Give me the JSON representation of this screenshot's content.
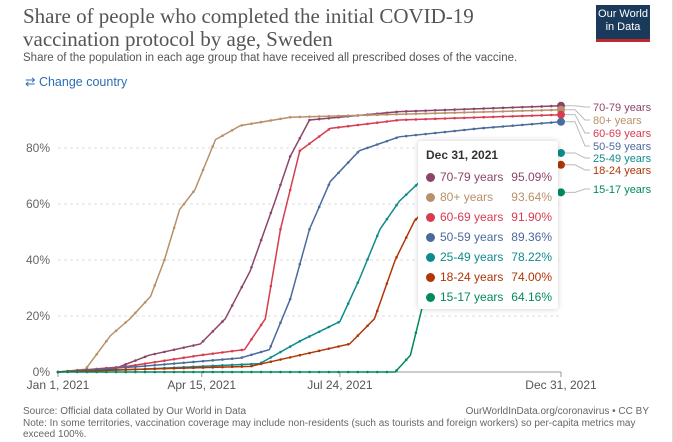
{
  "header": {
    "title": "Share of people who completed the initial COVID-19 vaccination protocol by age, Sweden",
    "subtitle": "Share of the population in each age group that have received all prescribed doses of the vaccine.",
    "logo": "Our World in Data",
    "change_country": "Change country"
  },
  "footer": {
    "source": "Source: Official data collated by Our World in Data",
    "note": "Note: In some territories, vaccination coverage may include non-residents (such as tourists and foreign workers) so per-capita metrics may exceed 100%.",
    "link": "OurWorldInData.org/coronavirus • CC BY"
  },
  "tooltip": {
    "date": "Dec 31, 2021",
    "rows": [
      {
        "name": "70-79 years",
        "value": "95.09%",
        "color": "#8c4569"
      },
      {
        "name": "80+ years",
        "value": "93.64%",
        "color": "#b8906a"
      },
      {
        "name": "60-69 years",
        "value": "91.90%",
        "color": "#d73c50"
      },
      {
        "name": "50-59 years",
        "value": "89.36%",
        "color": "#4c6a9c"
      },
      {
        "name": "25-49 years",
        "value": "78.22%",
        "color": "#0f8b8d"
      },
      {
        "name": "18-24 years",
        "value": "74.00%",
        "color": "#b13507"
      },
      {
        "name": "15-17 years",
        "value": "64.16%",
        "color": "#008a5e"
      }
    ]
  },
  "chart_data": {
    "type": "line",
    "title": "Share of people who completed the initial COVID-19 vaccination protocol by age, Sweden",
    "xlabel": "",
    "ylabel": "",
    "x_unit": "day of 2021",
    "xlim": [
      0,
      364
    ],
    "ylim": [
      0,
      100
    ],
    "x_ticks": [
      {
        "day": 0,
        "label": "Jan 1, 2021"
      },
      {
        "day": 104,
        "label": "Apr 15, 2021"
      },
      {
        "day": 204,
        "label": "Jul 24, 2021"
      },
      {
        "day": 364,
        "label": "Dec 31, 2021"
      }
    ],
    "y_ticks": [
      {
        "v": 0,
        "label": "0%"
      },
      {
        "v": 20,
        "label": "20%"
      },
      {
        "v": 40,
        "label": "40%"
      },
      {
        "v": 60,
        "label": "60%"
      },
      {
        "v": 80,
        "label": "80%"
      }
    ],
    "series": [
      {
        "name": "70-79 years",
        "color": "#8c4569",
        "points": [
          [
            0,
            0
          ],
          [
            40,
            1
          ],
          [
            66,
            6
          ],
          [
            103,
            10
          ],
          [
            121,
            19
          ],
          [
            139,
            36
          ],
          [
            157,
            61
          ],
          [
            168,
            77
          ],
          [
            182,
            90
          ],
          [
            247,
            93
          ],
          [
            364,
            95.09
          ]
        ]
      },
      {
        "name": "80+ years",
        "color": "#b8906a",
        "points": [
          [
            0,
            0
          ],
          [
            20,
            1
          ],
          [
            38,
            13
          ],
          [
            52,
            19
          ],
          [
            67,
            27
          ],
          [
            77,
            40
          ],
          [
            88,
            58
          ],
          [
            99,
            65
          ],
          [
            114,
            83
          ],
          [
            132,
            88
          ],
          [
            168,
            91
          ],
          [
            364,
            93.64
          ]
        ]
      },
      {
        "name": "60-69 years",
        "color": "#d73c50",
        "points": [
          [
            0,
            0
          ],
          [
            50,
            2
          ],
          [
            103,
            6
          ],
          [
            135,
            8
          ],
          [
            150,
            19
          ],
          [
            161,
            51
          ],
          [
            175,
            79
          ],
          [
            197,
            87
          ],
          [
            247,
            90
          ],
          [
            364,
            91.9
          ]
        ]
      },
      {
        "name": "50-59 years",
        "color": "#4c6a9c",
        "points": [
          [
            0,
            0
          ],
          [
            60,
            2
          ],
          [
            132,
            5
          ],
          [
            153,
            8
          ],
          [
            168,
            26
          ],
          [
            182,
            51
          ],
          [
            197,
            68
          ],
          [
            218,
            79
          ],
          [
            247,
            84
          ],
          [
            305,
            87
          ],
          [
            364,
            89.36
          ]
        ]
      },
      {
        "name": "25-49 years",
        "color": "#0f8b8d",
        "points": [
          [
            0,
            0
          ],
          [
            60,
            1
          ],
          [
            146,
            3
          ],
          [
            175,
            11
          ],
          [
            204,
            18
          ],
          [
            218,
            33
          ],
          [
            233,
            51
          ],
          [
            247,
            61
          ],
          [
            262,
            68
          ],
          [
            364,
            78.22
          ]
        ]
      },
      {
        "name": "18-24 years",
        "color": "#b13507",
        "points": [
          [
            0,
            0
          ],
          [
            60,
            1
          ],
          [
            139,
            2
          ],
          [
            175,
            6
          ],
          [
            211,
            10
          ],
          [
            229,
            19
          ],
          [
            244,
            40
          ],
          [
            258,
            54
          ],
          [
            280,
            65
          ],
          [
            364,
            74
          ]
        ]
      },
      {
        "name": "15-17 years",
        "color": "#008a5e",
        "points": [
          [
            0,
            0
          ],
          [
            244,
            0
          ],
          [
            255,
            6
          ],
          [
            265,
            26
          ],
          [
            280,
            45
          ],
          [
            305,
            56
          ],
          [
            364,
            64.16
          ]
        ]
      }
    ]
  }
}
